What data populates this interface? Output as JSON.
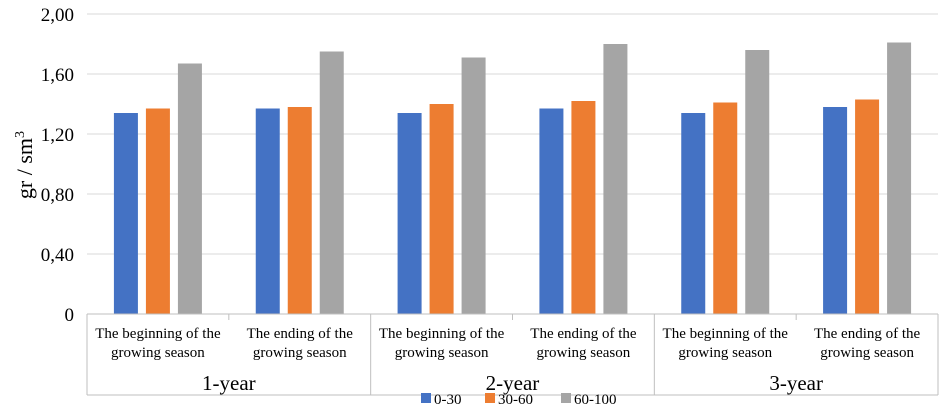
{
  "chart_data": {
    "type": "bar",
    "ylabel": "gr / sm",
    "ylabel_superscript": "3",
    "ylim": [
      0,
      2.0
    ],
    "yticks": [
      "0",
      "0,40",
      "0,80",
      "1,20",
      "1,60",
      "2,00"
    ],
    "tick_values": [
      0,
      0.4,
      0.8,
      1.2,
      1.6,
      2.0
    ],
    "grid": true,
    "legend_position": "bottom",
    "groups": [
      {
        "label": "1-year",
        "categories": [
          {
            "lines": [
              "The beginning of the",
              "growing season"
            ],
            "values": [
              1.34,
              1.37,
              1.67
            ]
          },
          {
            "lines": [
              "The ending of the",
              "growing season"
            ],
            "values": [
              1.37,
              1.38,
              1.75
            ]
          }
        ]
      },
      {
        "label": "2-year",
        "categories": [
          {
            "lines": [
              "The beginning of the",
              "growing season"
            ],
            "values": [
              1.34,
              1.4,
              1.71
            ]
          },
          {
            "lines": [
              "The ending of the",
              "growing season"
            ],
            "values": [
              1.37,
              1.42,
              1.8
            ]
          }
        ]
      },
      {
        "label": "3-year",
        "categories": [
          {
            "lines": [
              "The beginning of the",
              "growing season"
            ],
            "values": [
              1.34,
              1.41,
              1.76
            ]
          },
          {
            "lines": [
              "The ending of the",
              "growing season"
            ],
            "values": [
              1.38,
              1.43,
              1.81
            ]
          }
        ]
      }
    ],
    "series": [
      {
        "name": "0-30",
        "color": "#4472C4"
      },
      {
        "name": "30-60",
        "color": "#ED7D31"
      },
      {
        "name": "60-100",
        "color": "#A5A5A5"
      }
    ]
  }
}
